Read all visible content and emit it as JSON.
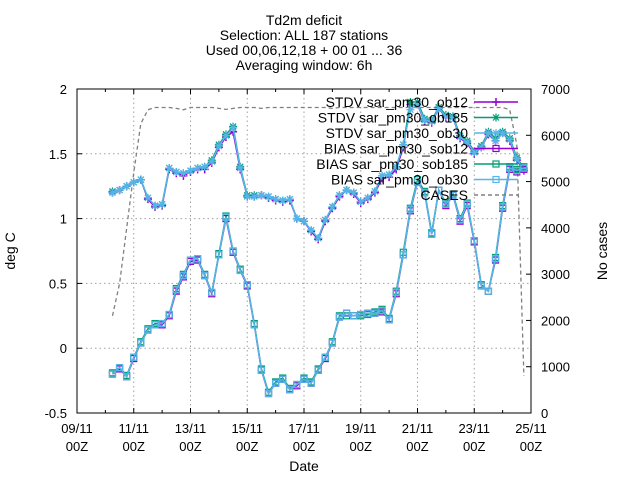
{
  "chart_data": {
    "type": "line",
    "title": [
      "Td2m deficit",
      "Selection: ALL    187 stations",
      "Used 00,06,12,18 + 00 01 ... 36",
      "Averaging window:  6h"
    ],
    "xlabel": "Date",
    "ylabel": "deg C",
    "y2label": "No cases",
    "xlim": [
      0,
      32
    ],
    "ylim": [
      -0.5,
      2
    ],
    "y2lim": [
      0,
      7000
    ],
    "yticks": [
      "-0.5",
      "0",
      "0.5",
      "1",
      "1.5",
      "2"
    ],
    "y2ticks": [
      "0",
      "1000",
      "2000",
      "3000",
      "4000",
      "5000",
      "6000",
      "7000"
    ],
    "xtick_positions": [
      0,
      4,
      8,
      12,
      16,
      20,
      24,
      28,
      32
    ],
    "xticks": [
      [
        "09/11",
        "00Z"
      ],
      [
        "11/11",
        "00Z"
      ],
      [
        "13/11",
        "00Z"
      ],
      [
        "15/11",
        "00Z"
      ],
      [
        "17/11",
        "00Z"
      ],
      [
        "19/11",
        "00Z"
      ],
      [
        "21/11",
        "00Z"
      ],
      [
        "23/11",
        "00Z"
      ],
      [
        "25/11",
        "00Z"
      ]
    ],
    "grid": true,
    "legend_position": "top-right",
    "series": [
      {
        "name": "STDV sar_pm30_ob12",
        "axis": "y",
        "color": "#9400d3",
        "marker": "cross",
        "x": [
          2.5,
          3,
          3.5,
          4,
          4.5,
          5,
          5.5,
          6,
          6.5,
          7,
          7.5,
          8,
          8.5,
          9,
          9.5,
          10,
          10.5,
          11,
          11.5,
          12,
          12.5,
          13,
          13.5,
          14,
          14.5,
          15,
          15.5,
          16,
          16.5,
          17,
          17.5,
          18,
          18.5,
          19,
          19.5,
          20,
          20.5,
          21,
          21.5,
          22,
          22.5,
          23,
          23.5,
          24,
          24.5,
          25,
          25.5,
          26,
          26.5,
          27,
          27.5,
          28,
          28.5,
          29,
          29.5,
          30,
          30.5,
          31,
          31.5
        ],
        "y": [
          1.2,
          1.22,
          1.25,
          1.28,
          1.3,
          1.15,
          1.09,
          1.1,
          1.38,
          1.35,
          1.33,
          1.36,
          1.38,
          1.38,
          1.43,
          1.55,
          1.63,
          1.67,
          1.38,
          1.17,
          1.17,
          1.18,
          1.16,
          1.14,
          1.13,
          1.14,
          1.0,
          0.98,
          0.9,
          0.84,
          0.98,
          1.08,
          1.17,
          1.22,
          1.19,
          1.12,
          1.15,
          1.2,
          1.31,
          1.32,
          1.38,
          1.55,
          1.88,
          1.88,
          1.75,
          1.74,
          1.85,
          1.78,
          1.78,
          1.62,
          1.58,
          1.5,
          1.55,
          1.65,
          1.6,
          1.66,
          1.6,
          1.45,
          1.37
        ]
      },
      {
        "name": "STDV sar_pm30_ob185",
        "axis": "y",
        "color": "#009e73",
        "marker": "star",
        "x": [
          2.5,
          3,
          3.5,
          4,
          4.5,
          5,
          5.5,
          6,
          6.5,
          7,
          7.5,
          8,
          8.5,
          9,
          9.5,
          10,
          10.5,
          11,
          11.5,
          12,
          12.5,
          13,
          13.5,
          14,
          14.5,
          15,
          15.5,
          16,
          16.5,
          17,
          17.5,
          18,
          18.5,
          19,
          19.5,
          20,
          20.5,
          21,
          21.5,
          22,
          22.5,
          23,
          23.5,
          24,
          24.5,
          25,
          25.5,
          26,
          26.5,
          27,
          27.5,
          28,
          28.5,
          29,
          29.5,
          30,
          30.5,
          31,
          31.5
        ],
        "y": [
          1.21,
          1.22,
          1.25,
          1.28,
          1.3,
          1.16,
          1.1,
          1.11,
          1.39,
          1.36,
          1.35,
          1.37,
          1.39,
          1.4,
          1.45,
          1.57,
          1.65,
          1.71,
          1.4,
          1.18,
          1.18,
          1.18,
          1.17,
          1.15,
          1.14,
          1.15,
          1.0,
          0.98,
          0.91,
          0.85,
          0.99,
          1.09,
          1.18,
          1.22,
          1.2,
          1.13,
          1.16,
          1.21,
          1.33,
          1.34,
          1.4,
          1.57,
          1.9,
          1.9,
          1.77,
          1.76,
          1.86,
          1.8,
          1.79,
          1.64,
          1.6,
          1.52,
          1.56,
          1.67,
          1.62,
          1.67,
          1.62,
          1.47,
          1.39
        ]
      },
      {
        "name": "STDV sar_pm30_ob30",
        "axis": "y",
        "color": "#56b4e9",
        "marker": "star",
        "x": [
          2.5,
          3,
          3.5,
          4,
          4.5,
          5,
          5.5,
          6,
          6.5,
          7,
          7.5,
          8,
          8.5,
          9,
          9.5,
          10,
          10.5,
          11,
          11.5,
          12,
          12.5,
          13,
          13.5,
          14,
          14.5,
          15,
          15.5,
          16,
          16.5,
          17,
          17.5,
          18,
          18.5,
          19,
          19.5,
          20,
          20.5,
          21,
          21.5,
          22,
          22.5,
          23,
          23.5,
          24,
          24.5,
          25,
          25.5,
          26,
          26.5,
          27,
          27.5,
          28,
          28.5,
          29,
          29.5,
          30,
          30.5,
          31,
          31.5
        ],
        "y": [
          1.2,
          1.22,
          1.25,
          1.28,
          1.3,
          1.16,
          1.1,
          1.11,
          1.39,
          1.36,
          1.35,
          1.37,
          1.39,
          1.4,
          1.44,
          1.56,
          1.64,
          1.7,
          1.39,
          1.17,
          1.17,
          1.18,
          1.17,
          1.15,
          1.14,
          1.15,
          1.0,
          0.98,
          0.91,
          0.85,
          0.99,
          1.09,
          1.18,
          1.22,
          1.2,
          1.13,
          1.16,
          1.21,
          1.33,
          1.34,
          1.4,
          1.57,
          1.84,
          1.88,
          1.76,
          1.75,
          1.85,
          1.79,
          1.78,
          1.63,
          1.59,
          1.51,
          1.55,
          1.66,
          1.6,
          1.66,
          1.61,
          1.46,
          1.38
        ]
      },
      {
        "name": "BIAS sar_pm30_sob12",
        "axis": "y",
        "color": "#9400d3",
        "marker": "square",
        "x": [
          2.5,
          3,
          3.5,
          4,
          4.5,
          5,
          5.5,
          6,
          6.5,
          7,
          7.5,
          8,
          8.5,
          9,
          9.5,
          10,
          10.5,
          11,
          11.5,
          12,
          12.5,
          13,
          13.5,
          14,
          14.5,
          15,
          15.5,
          16,
          16.5,
          17,
          17.5,
          18,
          18.5,
          19,
          19.5,
          20,
          20.5,
          21,
          21.5,
          22,
          22.5,
          23,
          23.5,
          24,
          24.5,
          25,
          25.5,
          26,
          26.5,
          27,
          27.5,
          28,
          28.5,
          29,
          29.5,
          30,
          30.5,
          31,
          31.5
        ],
        "y": [
          -0.2,
          -0.16,
          -0.22,
          -0.08,
          0.04,
          0.14,
          0.18,
          0.18,
          0.25,
          0.44,
          0.55,
          0.67,
          0.68,
          0.56,
          0.42,
          0.72,
          1.0,
          0.74,
          0.6,
          0.48,
          0.18,
          -0.17,
          -0.35,
          -0.27,
          -0.24,
          -0.32,
          -0.29,
          -0.24,
          -0.27,
          -0.17,
          -0.08,
          0.04,
          0.24,
          0.27,
          0.25,
          0.26,
          0.27,
          0.27,
          0.28,
          0.22,
          0.42,
          0.72,
          1.06,
          1.28,
          1.2,
          0.88,
          1.22,
          1.1,
          1.18,
          0.98,
          1.1,
          0.82,
          0.48,
          0.44,
          0.68,
          1.08,
          1.38,
          1.36,
          1.38
        ]
      },
      {
        "name": "BIAS sar_pm30_sob185",
        "axis": "y",
        "color": "#009e73",
        "marker": "square",
        "x": [
          2.5,
          3,
          3.5,
          4,
          4.5,
          5,
          5.5,
          6,
          6.5,
          7,
          7.5,
          8,
          8.5,
          9,
          9.5,
          10,
          10.5,
          11,
          11.5,
          12,
          12.5,
          13,
          13.5,
          14,
          14.5,
          15,
          15.5,
          16,
          16.5,
          17,
          17.5,
          18,
          18.5,
          19,
          19.5,
          20,
          20.5,
          21,
          21.5,
          22,
          22.5,
          23,
          23.5,
          24,
          24.5,
          25,
          25.5,
          26,
          26.5,
          27,
          27.5,
          28,
          28.5,
          29,
          29.5,
          30,
          30.5,
          31,
          31.5
        ],
        "y": [
          -0.19,
          -0.15,
          -0.21,
          -0.07,
          0.05,
          0.15,
          0.19,
          0.19,
          0.26,
          0.46,
          0.57,
          0.68,
          0.69,
          0.57,
          0.43,
          0.73,
          1.02,
          0.75,
          0.61,
          0.49,
          0.19,
          -0.16,
          -0.34,
          -0.26,
          -0.23,
          -0.31,
          -0.28,
          -0.23,
          -0.26,
          -0.16,
          -0.07,
          0.05,
          0.25,
          0.25,
          0.25,
          0.25,
          0.26,
          0.28,
          0.3,
          0.23,
          0.44,
          0.74,
          1.08,
          1.3,
          1.21,
          0.89,
          1.22,
          1.12,
          1.19,
          1.0,
          1.12,
          0.83,
          0.49,
          0.44,
          0.7,
          1.1,
          1.4,
          1.38,
          1.4
        ]
      },
      {
        "name": "BIAS sar_pm30_ob30",
        "axis": "y",
        "color": "#56b4e9",
        "marker": "square",
        "x": [
          2.5,
          3,
          3.5,
          4,
          4.5,
          5,
          5.5,
          6,
          6.5,
          7,
          7.5,
          8,
          8.5,
          9,
          9.5,
          10,
          10.5,
          11,
          11.5,
          12,
          12.5,
          13,
          13.5,
          14,
          14.5,
          15,
          15.5,
          16,
          16.5,
          17,
          17.5,
          18,
          18.5,
          19,
          19.5,
          20,
          20.5,
          21,
          21.5,
          22,
          22.5,
          23,
          23.5,
          24,
          24.5,
          25,
          25.5,
          26,
          26.5,
          27,
          27.5,
          28,
          28.5,
          29,
          29.5,
          30,
          30.5,
          31,
          31.5
        ],
        "y": [
          -0.2,
          -0.15,
          -0.22,
          -0.07,
          0.04,
          0.14,
          0.18,
          0.19,
          0.26,
          0.45,
          0.56,
          0.68,
          0.69,
          0.56,
          0.43,
          0.72,
          1.01,
          0.75,
          0.6,
          0.49,
          0.18,
          -0.17,
          -0.35,
          -0.27,
          -0.24,
          -0.32,
          -0.28,
          -0.24,
          -0.27,
          -0.17,
          -0.07,
          0.04,
          0.24,
          0.27,
          0.25,
          0.26,
          0.27,
          0.27,
          0.29,
          0.22,
          0.43,
          0.72,
          1.07,
          1.28,
          1.2,
          0.88,
          1.22,
          1.11,
          1.18,
          0.99,
          1.11,
          0.83,
          0.48,
          0.44,
          0.69,
          1.09,
          1.39,
          1.37,
          1.39
        ]
      },
      {
        "name": "CASES",
        "axis": "y2",
        "color": "#808080",
        "marker": "none",
        "dashed": true,
        "x": [
          2.5,
          3,
          3.5,
          4,
          4.5,
          5,
          5.5,
          6,
          6.5,
          7,
          7.5,
          8,
          8.5,
          9,
          9.5,
          10,
          10.5,
          11,
          11.5,
          12,
          12.5,
          13,
          13.5,
          14,
          14.5,
          15,
          15.5,
          16,
          16.5,
          17,
          17.5,
          18,
          18.5,
          19,
          19.5,
          20,
          20.5,
          21,
          21.5,
          22,
          22.5,
          23,
          23.5,
          24,
          24.5,
          25,
          25.5,
          26,
          26.5,
          27,
          27.5,
          28,
          28.5,
          29,
          29.5,
          30,
          30.5,
          31,
          31.5
        ],
        "y": [
          2100,
          2800,
          4000,
          5200,
          6250,
          6550,
          6600,
          6600,
          6600,
          6580,
          6550,
          6600,
          6600,
          6600,
          6600,
          6580,
          6560,
          6580,
          6600,
          6600,
          6600,
          6580,
          6600,
          6600,
          6600,
          6600,
          6600,
          6600,
          6600,
          6600,
          6600,
          6580,
          6600,
          6600,
          6600,
          6600,
          6600,
          6600,
          6600,
          6600,
          6600,
          6600,
          6600,
          6600,
          6600,
          6600,
          6600,
          6600,
          6600,
          6600,
          6600,
          6600,
          6600,
          6600,
          6600,
          6600,
          6550,
          5800,
          800
        ]
      }
    ]
  }
}
